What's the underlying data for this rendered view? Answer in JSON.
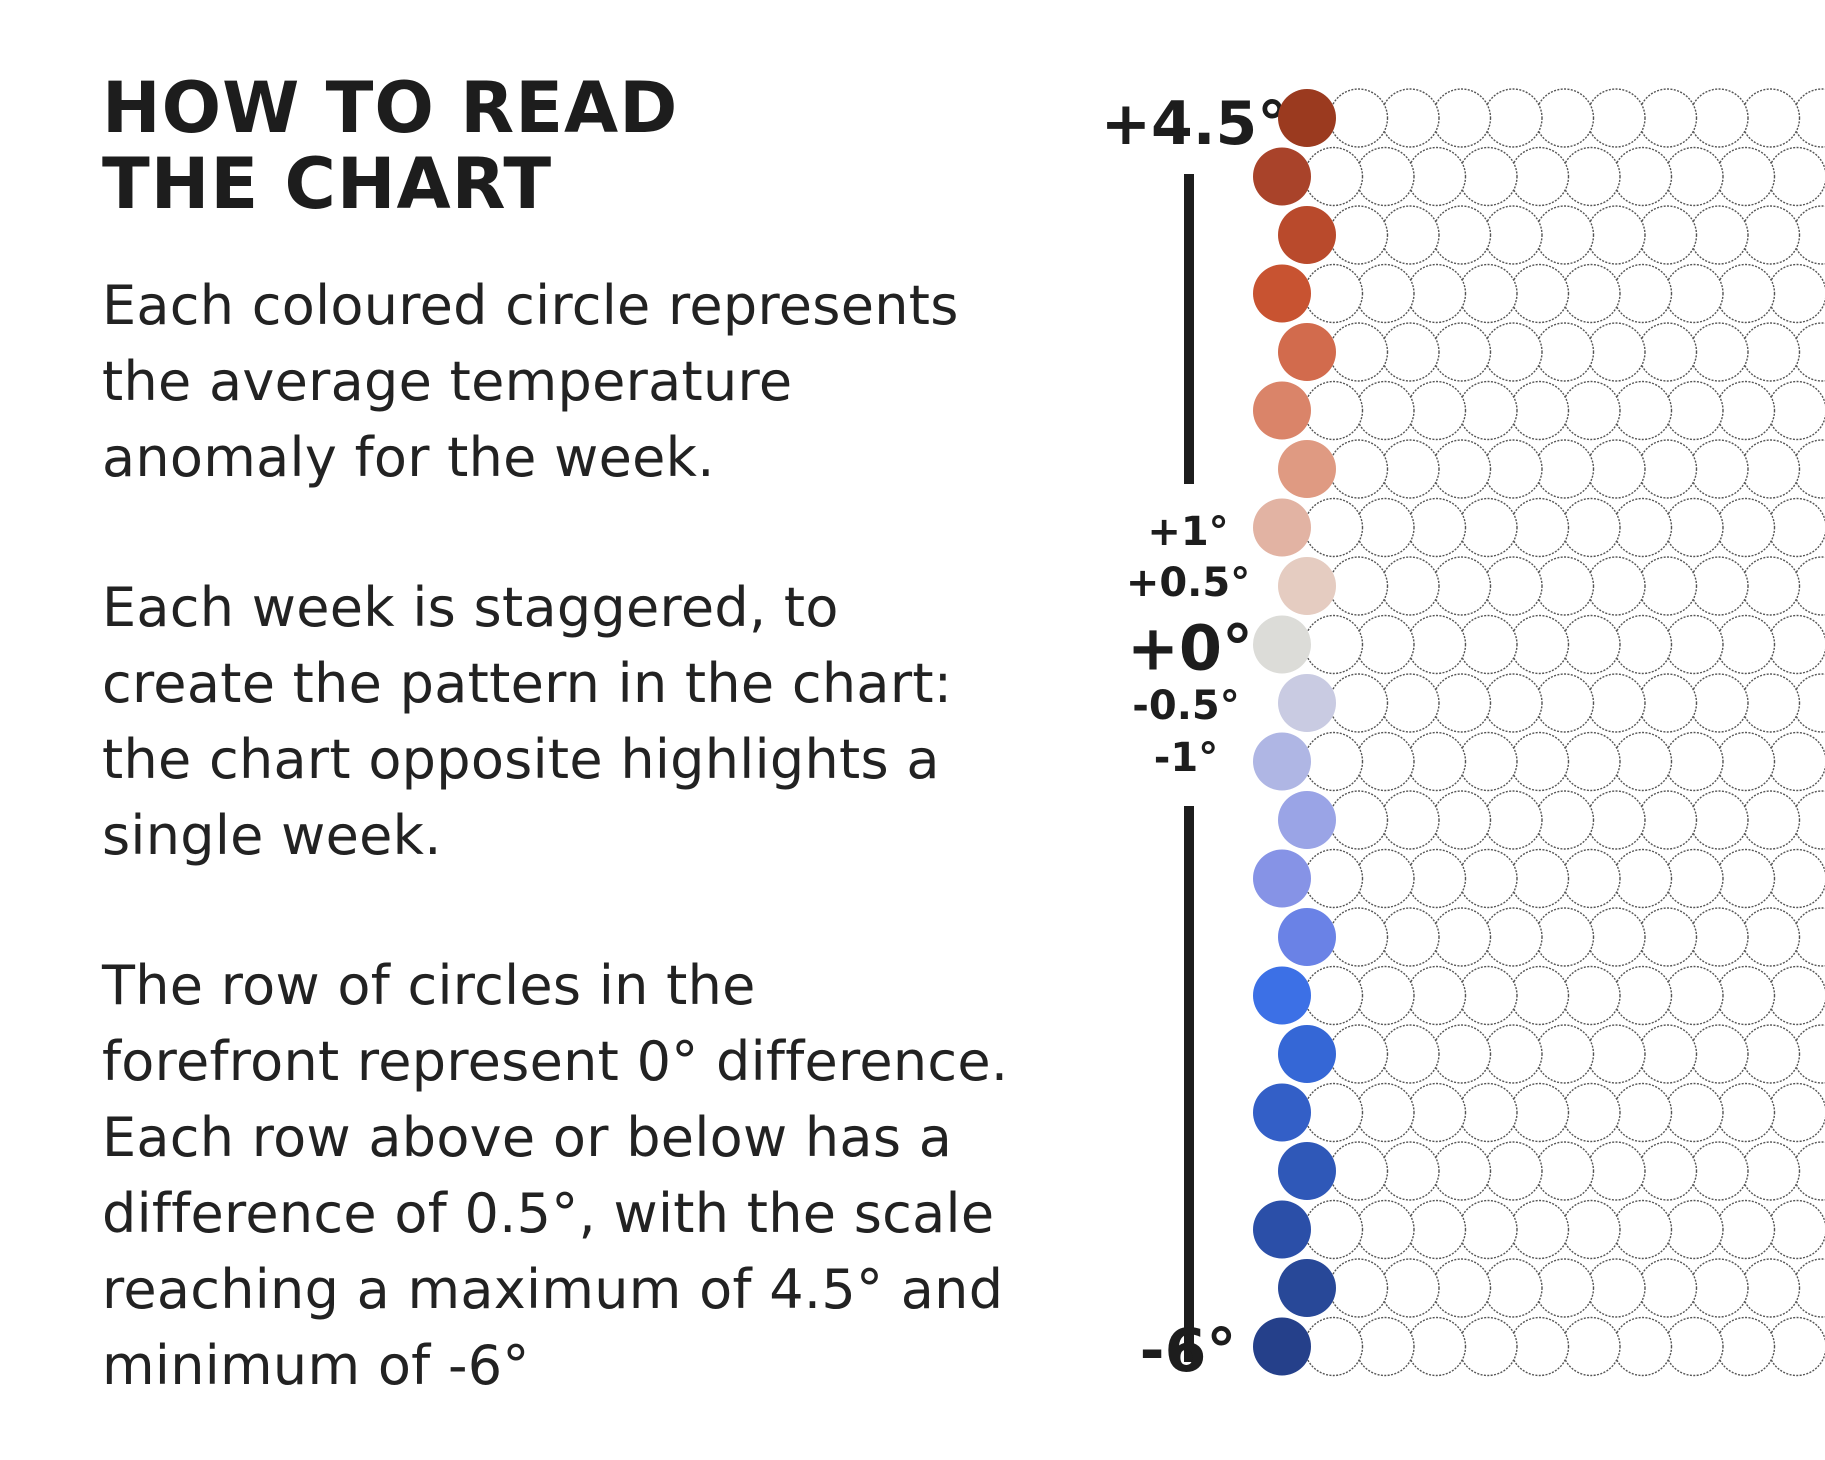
{
  "heading": {
    "lines": [
      "HOW TO READ",
      "THE CHART"
    ]
  },
  "explanation": {
    "paragraphs": [
      [
        "Each coloured circle represents",
        "the average temperature",
        "anomaly for the week."
      ],
      [
        "Each week is staggered, to",
        "create the pattern in the chart:",
        "the chart opposite highlights a",
        "single week."
      ],
      [
        "The row of circles in the",
        "forefront represent 0° difference.",
        "Each row above or below has a",
        "difference of 0.5°, with the scale",
        "reaching a maximum of 4.5° and",
        "minimum of -6°"
      ]
    ]
  },
  "scale": {
    "top_label": "+4.5°",
    "plus_one": "+1°",
    "plus_half": "+0.5°",
    "zero": "+0°",
    "minus_half": "-0.5°",
    "minus_one": "-1°",
    "bottom_label": "-6°"
  },
  "chart_data": {
    "type": "diagram",
    "step": 0.5,
    "max": 4.5,
    "min": -6,
    "highlighted_week": [
      {
        "anomaly": 4.5,
        "color": "#9b3a1f"
      },
      {
        "anomaly": 4.0,
        "color": "#a9432a"
      },
      {
        "anomaly": 3.5,
        "color": "#b94a2c"
      },
      {
        "anomaly": 3.0,
        "color": "#c85331"
      },
      {
        "anomaly": 2.5,
        "color": "#d26b4d"
      },
      {
        "anomaly": 2.0,
        "color": "#da8469"
      },
      {
        "anomaly": 1.5,
        "color": "#df9a82"
      },
      {
        "anomaly": 1.0,
        "color": "#e2b3a3"
      },
      {
        "anomaly": 0.5,
        "color": "#e5ccc1"
      },
      {
        "anomaly": 0.0,
        "color": "#dcdcd8"
      },
      {
        "anomaly": -0.5,
        "color": "#c9cbe2"
      },
      {
        "anomaly": -1.0,
        "color": "#afb6e4"
      },
      {
        "anomaly": -1.5,
        "color": "#9aa4e6"
      },
      {
        "anomaly": -2.0,
        "color": "#8693e6"
      },
      {
        "anomaly": -2.5,
        "color": "#6a82e6"
      },
      {
        "anomaly": -3.0,
        "color": "#3c70e6"
      },
      {
        "anomaly": -3.5,
        "color": "#3567d6"
      },
      {
        "anomaly": -4.0,
        "color": "#335fc7"
      },
      {
        "anomaly": -4.5,
        "color": "#2f58b8"
      },
      {
        "anomaly": -5.0,
        "color": "#2b4fa8"
      },
      {
        "anomaly": -5.5,
        "color": "#284898"
      },
      {
        "anomaly": -6.0,
        "color": "#25408a"
      }
    ],
    "background_circle": {
      "fill": "#ffffff",
      "stroke": "#555555"
    }
  }
}
